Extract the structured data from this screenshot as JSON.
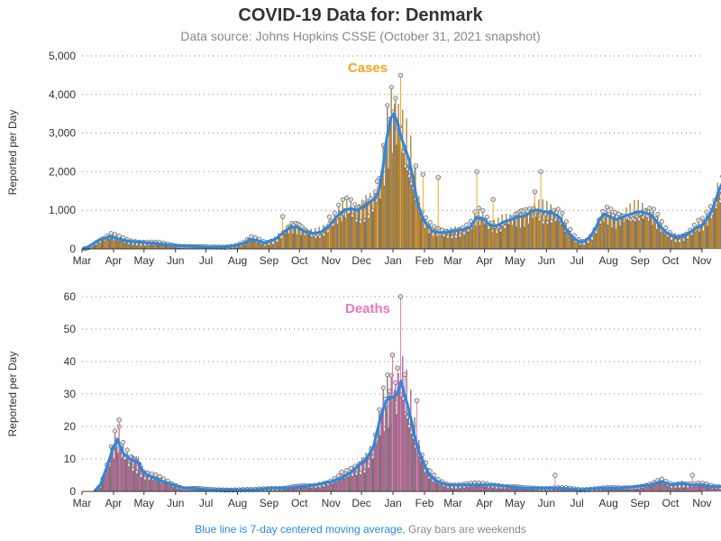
{
  "title": "COVID-19 Data for: Denmark",
  "subtitle": "Data source: Johns Hopkins CSSE (October 31, 2021 snapshot)",
  "footer": {
    "blue_text": "Blue line is 7-day centered moving average,",
    "gray_text": " Gray bars are weekends"
  },
  "colors": {
    "cases": "#f5a623",
    "deaths": "#e879b9",
    "average": "#2e86de"
  },
  "chart_data": [
    {
      "type": "bar",
      "panel_label": "Cases",
      "ylabel": "Reported per Day",
      "ylim": [
        0,
        5000
      ],
      "yticks": [
        "0",
        "1,000",
        "2,000",
        "3,000",
        "4,000",
        "5,000"
      ],
      "yticks_values": [
        0,
        1000,
        2000,
        3000,
        4000,
        5000
      ],
      "x_tick_labels": [
        "Mar",
        "Apr",
        "May",
        "Jun",
        "Jul",
        "Aug",
        "Sep",
        "Oct",
        "Nov",
        "Dec",
        "Jan",
        "Feb",
        "Mar",
        "Apr",
        "May",
        "Jun",
        "Jul",
        "Aug",
        "Sep",
        "Oct",
        "Nov"
      ],
      "series_key_points": [
        [
          0,
          0
        ],
        [
          5,
          20
        ],
        [
          10,
          120
        ],
        [
          17,
          230
        ],
        [
          28,
          320
        ],
        [
          35,
          260
        ],
        [
          45,
          200
        ],
        [
          55,
          180
        ],
        [
          65,
          160
        ],
        [
          75,
          130
        ],
        [
          85,
          100
        ],
        [
          95,
          80
        ],
        [
          110,
          60
        ],
        [
          125,
          40
        ],
        [
          140,
          50
        ],
        [
          150,
          80
        ],
        [
          160,
          150
        ],
        [
          165,
          240
        ],
        [
          172,
          220
        ],
        [
          180,
          150
        ],
        [
          190,
          250
        ],
        [
          198,
          420
        ],
        [
          205,
          560
        ],
        [
          212,
          560
        ],
        [
          220,
          440
        ],
        [
          228,
          400
        ],
        [
          235,
          440
        ],
        [
          242,
          560
        ],
        [
          250,
          820
        ],
        [
          258,
          1000
        ],
        [
          265,
          1050
        ],
        [
          270,
          1000
        ],
        [
          275,
          1060
        ],
        [
          282,
          1200
        ],
        [
          288,
          1300
        ],
        [
          292,
          1500
        ],
        [
          296,
          2100
        ],
        [
          300,
          2900
        ],
        [
          304,
          3400
        ],
        [
          307,
          3500
        ],
        [
          310,
          3300
        ],
        [
          314,
          2900
        ],
        [
          318,
          2600
        ],
        [
          322,
          2300
        ],
        [
          326,
          1800
        ],
        [
          330,
          1200
        ],
        [
          335,
          800
        ],
        [
          340,
          600
        ],
        [
          345,
          460
        ],
        [
          352,
          420
        ],
        [
          360,
          430
        ],
        [
          368,
          480
        ],
        [
          375,
          500
        ],
        [
          382,
          560
        ],
        [
          388,
          800
        ],
        [
          395,
          780
        ],
        [
          400,
          650
        ],
        [
          405,
          590
        ],
        [
          410,
          620
        ],
        [
          415,
          700
        ],
        [
          420,
          740
        ],
        [
          428,
          820
        ],
        [
          435,
          850
        ],
        [
          440,
          920
        ],
        [
          445,
          1000
        ],
        [
          450,
          1000
        ],
        [
          455,
          960
        ],
        [
          460,
          950
        ],
        [
          465,
          900
        ],
        [
          470,
          820
        ],
        [
          475,
          560
        ],
        [
          480,
          380
        ],
        [
          485,
          250
        ],
        [
          490,
          180
        ],
        [
          495,
          200
        ],
        [
          500,
          320
        ],
        [
          505,
          520
        ],
        [
          510,
          800
        ],
        [
          515,
          900
        ],
        [
          520,
          820
        ],
        [
          525,
          760
        ],
        [
          530,
          800
        ],
        [
          535,
          860
        ],
        [
          540,
          900
        ],
        [
          545,
          950
        ],
        [
          550,
          960
        ],
        [
          555,
          920
        ],
        [
          560,
          880
        ],
        [
          565,
          720
        ],
        [
          570,
          550
        ],
        [
          575,
          420
        ],
        [
          580,
          350
        ],
        [
          585,
          300
        ],
        [
          590,
          330
        ],
        [
          595,
          380
        ],
        [
          600,
          460
        ],
        [
          605,
          560
        ],
        [
          610,
          600
        ],
        [
          615,
          780
        ],
        [
          620,
          1000
        ],
        [
          624,
          1300
        ],
        [
          627,
          1550
        ],
        [
          630,
          1700
        ],
        [
          633,
          1700
        ]
      ],
      "spikes": [
        [
          197,
          840
        ],
        [
          313,
          4500
        ],
        [
          328,
          2150
        ],
        [
          335,
          1930
        ],
        [
          388,
          2000
        ],
        [
          404,
          1280
        ],
        [
          445,
          1480
        ],
        [
          451,
          2000
        ],
        [
          630,
          1880
        ],
        [
          243,
          830
        ],
        [
          290,
          1750
        ],
        [
          350,
          1850
        ]
      ]
    },
    {
      "type": "bar",
      "panel_label": "Deaths",
      "ylabel": "Reported per Day",
      "ylim": [
        0,
        60
      ],
      "yticks": [
        "0",
        "10",
        "20",
        "30",
        "40",
        "50",
        "60"
      ],
      "yticks_values": [
        0,
        10,
        20,
        30,
        40,
        50,
        60
      ],
      "x_tick_labels": [
        "Mar",
        "Apr",
        "May",
        "Jun",
        "Jul",
        "Aug",
        "Sep",
        "Oct",
        "Nov",
        "Dec",
        "Jan",
        "Feb",
        "Mar",
        "Apr",
        "May",
        "Jun",
        "Jul",
        "Aug",
        "Sep",
        "Oct",
        "Nov"
      ],
      "series_key_points": [
        [
          12,
          0
        ],
        [
          18,
          2
        ],
        [
          25,
          8
        ],
        [
          30,
          13
        ],
        [
          35,
          16
        ],
        [
          40,
          12
        ],
        [
          47,
          10
        ],
        [
          55,
          9
        ],
        [
          60,
          6
        ],
        [
          65,
          5
        ],
        [
          72,
          4
        ],
        [
          80,
          3
        ],
        [
          90,
          2
        ],
        [
          100,
          1
        ],
        [
          110,
          1
        ],
        [
          125,
          0.5
        ],
        [
          140,
          0.5
        ],
        [
          155,
          0.5
        ],
        [
          170,
          0.5
        ],
        [
          185,
          1
        ],
        [
          200,
          1
        ],
        [
          215,
          1.5
        ],
        [
          230,
          2
        ],
        [
          245,
          3
        ],
        [
          255,
          4
        ],
        [
          265,
          6
        ],
        [
          272,
          8
        ],
        [
          280,
          10
        ],
        [
          287,
          14
        ],
        [
          293,
          22
        ],
        [
          298,
          27
        ],
        [
          302,
          29
        ],
        [
          306,
          29
        ],
        [
          310,
          30
        ],
        [
          314,
          34
        ],
        [
          317,
          30
        ],
        [
          320,
          27
        ],
        [
          324,
          22
        ],
        [
          328,
          16
        ],
        [
          332,
          12
        ],
        [
          337,
          8
        ],
        [
          342,
          5
        ],
        [
          350,
          3
        ],
        [
          360,
          2
        ],
        [
          375,
          2
        ],
        [
          390,
          2
        ],
        [
          405,
          2
        ],
        [
          420,
          1.5
        ],
        [
          435,
          1
        ],
        [
          450,
          1
        ],
        [
          470,
          1
        ],
        [
          490,
          0.5
        ],
        [
          510,
          1
        ],
        [
          530,
          1
        ],
        [
          545,
          1.5
        ],
        [
          560,
          2
        ],
        [
          570,
          3
        ],
        [
          580,
          2
        ],
        [
          590,
          2.5
        ],
        [
          600,
          2
        ],
        [
          610,
          2
        ],
        [
          620,
          1.5
        ],
        [
          630,
          1.5
        ]
      ],
      "spikes": [
        [
          36,
          22
        ],
        [
          305,
          42
        ],
        [
          313,
          60
        ],
        [
          317,
          36
        ],
        [
          329,
          28
        ],
        [
          310,
          38
        ],
        [
          255,
          6
        ],
        [
          465,
          5
        ],
        [
          600,
          5
        ]
      ]
    }
  ]
}
